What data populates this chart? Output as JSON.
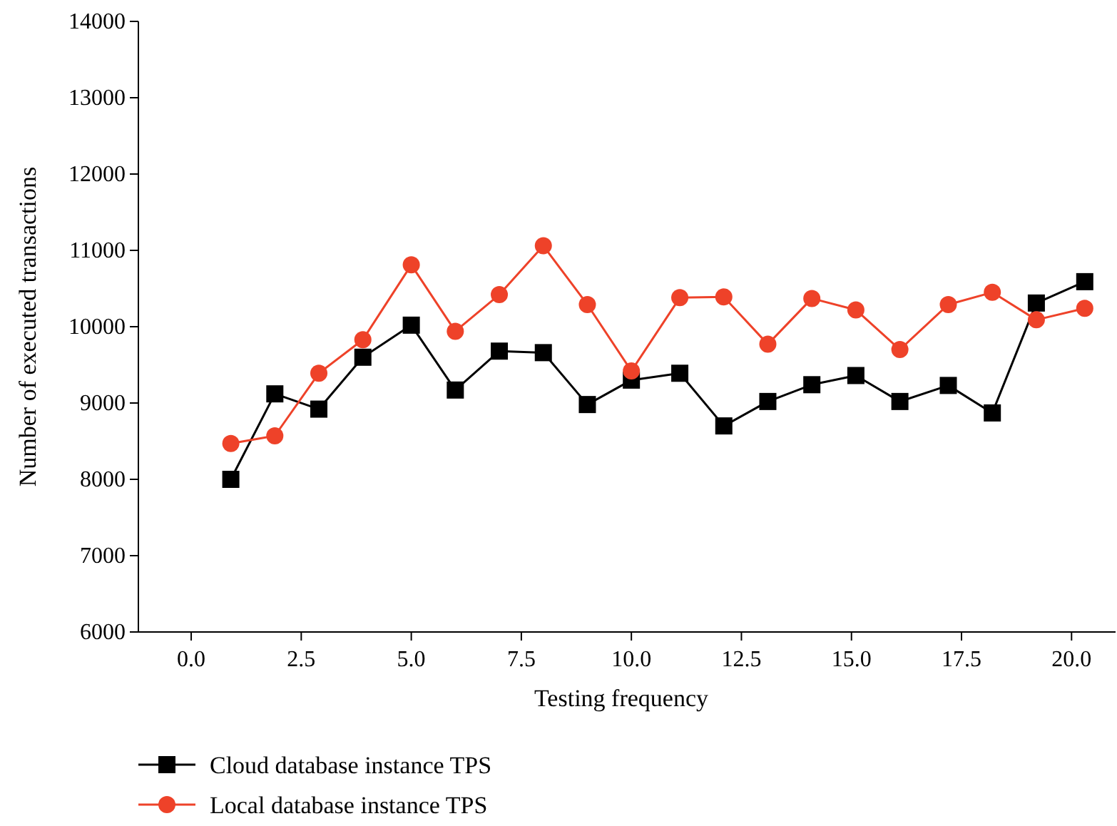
{
  "chart_data": {
    "type": "line",
    "xlabel": "Testing frequency",
    "ylabel": "Number of executed transactions",
    "x": [
      0.9,
      1.9,
      2.9,
      3.9,
      5.0,
      6.0,
      7.0,
      8.0,
      9.0,
      10.0,
      11.1,
      12.1,
      13.1,
      14.1,
      15.1,
      16.1,
      17.2,
      18.2,
      19.2,
      20.3
    ],
    "series": [
      {
        "name": "Cloud database instance TPS",
        "color": "#000000",
        "marker": "square",
        "values": [
          8000,
          9120,
          8920,
          9600,
          10020,
          9170,
          9680,
          9660,
          8980,
          9300,
          9390,
          8700,
          9020,
          9240,
          9360,
          9020,
          9230,
          8870,
          10310,
          10590
        ]
      },
      {
        "name": "Local database instance TPS",
        "color": "#ee4229",
        "marker": "circle",
        "values": [
          8470,
          8570,
          9390,
          9830,
          10810,
          9940,
          10420,
          11060,
          10290,
          9420,
          10380,
          10390,
          9770,
          10370,
          10220,
          9700,
          10290,
          10450,
          10090,
          10240
        ]
      }
    ],
    "xlim": [
      -1.2,
      21.0
    ],
    "xticks": [
      {
        "value": 0,
        "label": "0.0"
      },
      {
        "value": 2.5,
        "label": "2.5"
      },
      {
        "value": 5,
        "label": "5.0"
      },
      {
        "value": 7.5,
        "label": "7.5"
      },
      {
        "value": 10,
        "label": "10.0"
      },
      {
        "value": 12.5,
        "label": "12.5"
      },
      {
        "value": 15,
        "label": "15.0"
      },
      {
        "value": 17.5,
        "label": "17.5"
      },
      {
        "value": 20,
        "label": "20.0"
      }
    ],
    "ylim": [
      6000,
      14000
    ],
    "yticks": [
      6000,
      7000,
      8000,
      9000,
      10000,
      11000,
      12000,
      13000,
      14000
    ],
    "grid": false,
    "legend": "bottom",
    "line_style": "solid"
  }
}
